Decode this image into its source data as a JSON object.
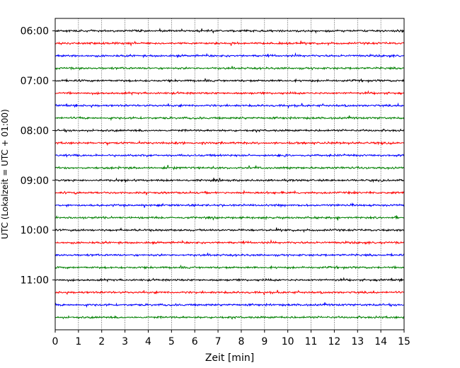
{
  "chart_data": {
    "type": "line",
    "title": "",
    "xlabel": "Zeit  [min]",
    "ylabel": "UTC (Lokalzeit = UTC + 01:00)",
    "xlim": [
      0,
      15
    ],
    "x_ticks": [
      "0",
      "1",
      "2",
      "3",
      "4",
      "5",
      "6",
      "7",
      "8",
      "9",
      "10",
      "11",
      "12",
      "13",
      "14",
      "15"
    ],
    "y_ticks": [
      "06:00",
      "07:00",
      "08:00",
      "09:00",
      "10:00",
      "11:00"
    ],
    "y_range_time": [
      "05:45",
      "12:00"
    ],
    "trace_interval_minutes": 15,
    "grid_x": true,
    "grid_style": "dotted",
    "trace_colors": [
      "#000000",
      "#ff0000",
      "#0000ff",
      "#008000"
    ],
    "traces": [
      {
        "start": "06:00",
        "color": "#000000"
      },
      {
        "start": "06:15",
        "color": "#ff0000"
      },
      {
        "start": "06:30",
        "color": "#0000ff"
      },
      {
        "start": "06:45",
        "color": "#008000"
      },
      {
        "start": "07:00",
        "color": "#000000"
      },
      {
        "start": "07:15",
        "color": "#ff0000"
      },
      {
        "start": "07:30",
        "color": "#0000ff"
      },
      {
        "start": "07:45",
        "color": "#008000"
      },
      {
        "start": "08:00",
        "color": "#000000"
      },
      {
        "start": "08:15",
        "color": "#ff0000"
      },
      {
        "start": "08:30",
        "color": "#0000ff"
      },
      {
        "start": "08:45",
        "color": "#008000"
      },
      {
        "start": "09:00",
        "color": "#000000"
      },
      {
        "start": "09:15",
        "color": "#ff0000"
      },
      {
        "start": "09:30",
        "color": "#0000ff"
      },
      {
        "start": "09:45",
        "color": "#008000"
      },
      {
        "start": "10:00",
        "color": "#000000"
      },
      {
        "start": "10:15",
        "color": "#ff0000"
      },
      {
        "start": "10:30",
        "color": "#0000ff"
      },
      {
        "start": "10:45",
        "color": "#008000"
      },
      {
        "start": "11:00",
        "color": "#000000"
      },
      {
        "start": "11:15",
        "color": "#ff0000"
      },
      {
        "start": "11:30",
        "color": "#0000ff"
      },
      {
        "start": "11:45",
        "color": "#008000"
      }
    ]
  }
}
